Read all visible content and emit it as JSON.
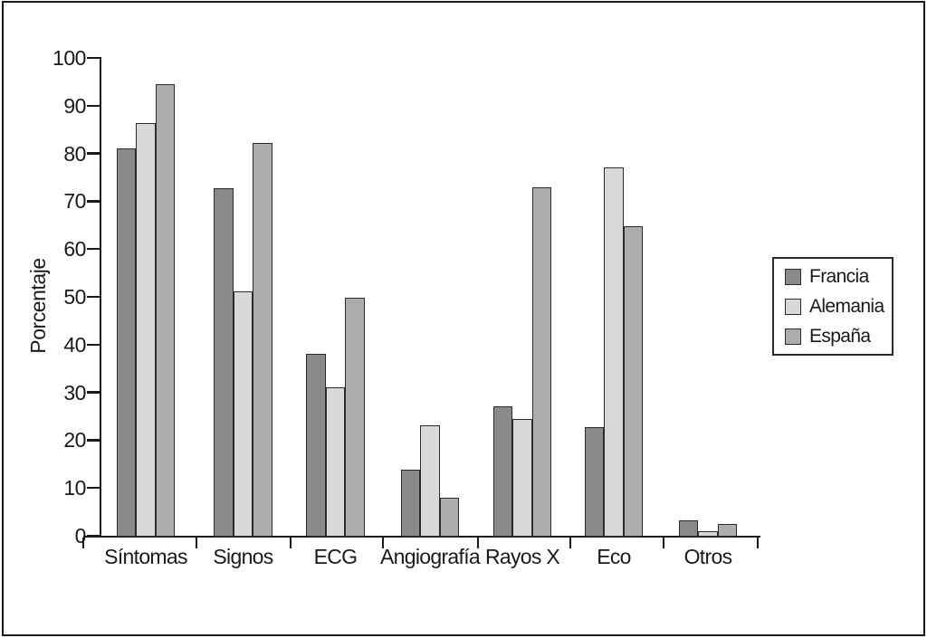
{
  "figure": {
    "background": "#ffffff",
    "frame_color": "#1a1a1a",
    "axis_color": "#1a1a1a",
    "text_color": "#1a1a1a",
    "bar_border_color": "#2b2b2b"
  },
  "chart_data": {
    "type": "bar",
    "title": "",
    "xlabel": "",
    "ylabel": "Porcentaje",
    "ylim": [
      0,
      100
    ],
    "ytick_step": 10,
    "ytick_labels": [
      "0",
      "10",
      "20",
      "30",
      "40",
      "50",
      "60",
      "70",
      "80",
      "90",
      "100"
    ],
    "grid": false,
    "legend_position": "right",
    "categories": [
      "Síntomas",
      "Signos",
      "ECG",
      "Angiografía",
      "Rayos X",
      "Eco",
      "Otros"
    ],
    "series": [
      {
        "name": "Francia",
        "color": "#8a8a8a",
        "values": [
          81,
          72.8,
          38,
          13.8,
          27,
          22.8,
          3.2
        ]
      },
      {
        "name": "Alemania",
        "color": "#d8d8d8",
        "values": [
          86.3,
          51.2,
          31,
          23.2,
          24.5,
          77,
          1.0
        ]
      },
      {
        "name": "España",
        "color": "#acacac",
        "values": [
          94.5,
          82.2,
          49.8,
          7.9,
          73,
          64.8,
          2.5
        ]
      }
    ]
  }
}
